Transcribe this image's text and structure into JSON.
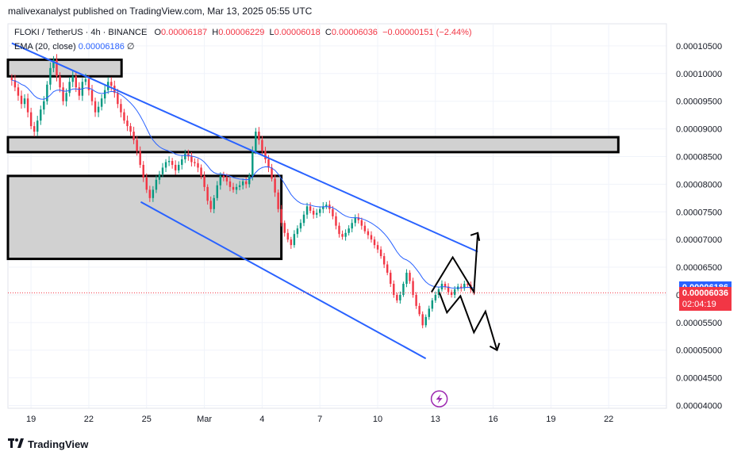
{
  "header": {
    "publisher_line": "malivexanalyst published on TradingView.com, Mar 13, 2025 05:55 UTC"
  },
  "legend": {
    "symbol": "FLOKI / TetherUS · 4h · BINANCE",
    "o_label": "O",
    "o_value": "0.00006187",
    "h_label": "H",
    "h_value": "0.00006229",
    "l_label": "L",
    "l_value": "0.00006018",
    "c_label": "C",
    "c_value": "0.00006036",
    "change": "−0.00000151 (−2.44%)",
    "ema_label": "EMA (20, close)",
    "ema_value": "0.00006186",
    "ema_extra": "∅"
  },
  "price_badges": {
    "ema": "0.00006186",
    "last": "0.00006036",
    "countdown": "02:04:19"
  },
  "footer": {
    "brand": "TradingView"
  },
  "colors": {
    "up": "#089981",
    "down": "#f23645",
    "ema": "#2962ff",
    "channel": "#2962ff",
    "zone_fill": "#d1d1d1",
    "zone_border": "#000000"
  },
  "icons": {
    "lightning": "lightning-icon",
    "logo": "tradingview-logo-icon"
  },
  "chart_data": {
    "type": "candlestick",
    "symbol": "FLOKIUSDT",
    "interval": "4h",
    "ylim": [
      3.95e-05,
      0.000109
    ],
    "y_ticks": [
      "0.00010500",
      "0.00010000",
      "0.00009500",
      "0.00009000",
      "0.00008500",
      "0.00008000",
      "0.00007500",
      "0.00007000",
      "0.00006500",
      "0.00006000",
      "0.00005500",
      "0.00005000",
      "0.00004500",
      "0.00004000"
    ],
    "y_tick_values": [
      0.000105,
      0.0001,
      9.5e-05,
      9e-05,
      8.5e-05,
      8e-05,
      7.5e-05,
      7e-05,
      6.5e-05,
      6e-05,
      5.5e-05,
      5e-05,
      4.5e-05,
      4e-05
    ],
    "x_ticks": [
      {
        "label": "19",
        "t": 0
      },
      {
        "label": "22",
        "t": 3
      },
      {
        "label": "25",
        "t": 6
      },
      {
        "label": "Mar",
        "t": 9
      },
      {
        "label": "4",
        "t": 12
      },
      {
        "label": "7",
        "t": 15
      },
      {
        "label": "10",
        "t": 18
      },
      {
        "label": "13",
        "t": 21
      },
      {
        "label": "16",
        "t": 24
      },
      {
        "label": "19",
        "t": 27
      },
      {
        "label": "22",
        "t": 30
      }
    ],
    "xlim_days": [
      -1.2,
      33.0
    ],
    "candles_t0": -1.0,
    "candles_step_days": 0.1667,
    "closes": [
      9.88e-05,
      9.75e-05,
      9.6e-05,
      9.45e-05,
      9.55e-05,
      9.3e-05,
      9.05e-05,
      8.95e-05,
      9.15e-05,
      9.35e-05,
      9.5e-05,
      9.8e-05,
      0.000101,
      0.0001025,
      9.95e-05,
      9.75e-05,
      9.5e-05,
      9.65e-05,
      9.85e-05,
      9.95e-05,
      9.75e-05,
      9.6e-05,
      9.85e-05,
      9.9e-05,
      9.7e-05,
      9.5e-05,
      9.3e-05,
      9.4e-05,
      9.55e-05,
      9.7e-05,
      9.85e-05,
      9.78e-05,
      9.65e-05,
      9.45e-05,
      9.3e-05,
      9.15e-05,
      9.05e-05,
      8.95e-05,
      8.8e-05,
      8.6e-05,
      8.35e-05,
      8.12e-05,
      7.9e-05,
      7.75e-05,
      7.9e-05,
      8.08e-05,
      8.18e-05,
      8.3e-05,
      8.4e-05,
      8.42e-05,
      8.35e-05,
      8.25e-05,
      8.35e-05,
      8.45e-05,
      8.55e-05,
      8.5e-05,
      8.4e-05,
      8.38e-05,
      8.3e-05,
      8.15e-05,
      7.95e-05,
      7.7e-05,
      7.55e-05,
      7.75e-05,
      7.98e-05,
      8.15e-05,
      8.12e-05,
      8.05e-05,
      7.95e-05,
      7.9e-05,
      7.95e-05,
      7.98e-05,
      8.05e-05,
      8e-05,
      8.15e-05,
      8.6e-05,
      8.95e-05,
      8.8e-05,
      8.6e-05,
      8.45e-05,
      8.3e-05,
      8.1e-05,
      7.85e-05,
      7.55e-05,
      7.3e-05,
      7.12e-05,
      7e-05,
      6.9e-05,
      7.1e-05,
      7.2e-05,
      7.3e-05,
      7.45e-05,
      7.6e-05,
      7.52e-05,
      7.45e-05,
      7.48e-05,
      7.55e-05,
      7.6e-05,
      7.63e-05,
      7.55e-05,
      7.42e-05,
      7.25e-05,
      7.1e-05,
      7.05e-05,
      7.12e-05,
      7.2e-05,
      7.3e-05,
      7.4e-05,
      7.35e-05,
      7.25e-05,
      7.15e-05,
      7.08e-05,
      7e-05,
      6.9e-05,
      6.82e-05,
      6.7e-05,
      6.55e-05,
      6.4e-05,
      6.2e-05,
      6e-05,
      5.9e-05,
      6e-05,
      6.2e-05,
      6.4e-05,
      6.25e-05,
      6e-05,
      5.8e-05,
      5.65e-05,
      5.45e-05,
      5.6e-05,
      5.75e-05,
      5.9e-05,
      6e-05,
      6.1e-05,
      6.2e-05,
      6.15e-05,
      6.05e-05,
      6e-05,
      6.1e-05,
      6.15e-05,
      6.12e-05,
      6.2e-05,
      6.18e-05,
      6.1e-05,
      6.04e-05
    ],
    "ema_period": 20,
    "channel": {
      "upper": [
        {
          "t": -1.0,
          "y": 0.0001055
        },
        {
          "t": 23.2,
          "y": 6.78e-05
        }
      ],
      "lower": [
        {
          "t": 5.7,
          "y": 7.68e-05
        },
        {
          "t": 20.5,
          "y": 4.85e-05
        }
      ]
    },
    "zones": [
      {
        "t0": -1.6,
        "t1": 4.7,
        "y0": 9.95e-05,
        "y1": 0.0001025
      },
      {
        "t0": -1.6,
        "t1": 30.5,
        "y0": 8.58e-05,
        "y1": 8.85e-05
      },
      {
        "t0": -1.6,
        "t1": 13.0,
        "y0": 6.65e-05,
        "y1": 8.15e-05
      }
    ],
    "projection_up": [
      {
        "t": 20.8,
        "y": 6.05e-05
      },
      {
        "t": 21.9,
        "y": 6.68e-05
      },
      {
        "t": 23.0,
        "y": 6.05e-05
      },
      {
        "t": 23.2,
        "y": 7.12e-05
      }
    ],
    "projection_down": [
      {
        "t": 21.2,
        "y": 6.05e-05
      },
      {
        "t": 21.6,
        "y": 5.68e-05
      },
      {
        "t": 22.3,
        "y": 5.98e-05
      },
      {
        "t": 23.0,
        "y": 5.32e-05
      },
      {
        "t": 23.6,
        "y": 5.7e-05
      },
      {
        "t": 24.2,
        "y": 5e-05
      },
      {
        "t": 24.3,
        "y": 5.12e-05
      }
    ],
    "last_price_line": 6.036e-05,
    "marker_t": 21.2,
    "marker_y": 4.12e-05
  }
}
